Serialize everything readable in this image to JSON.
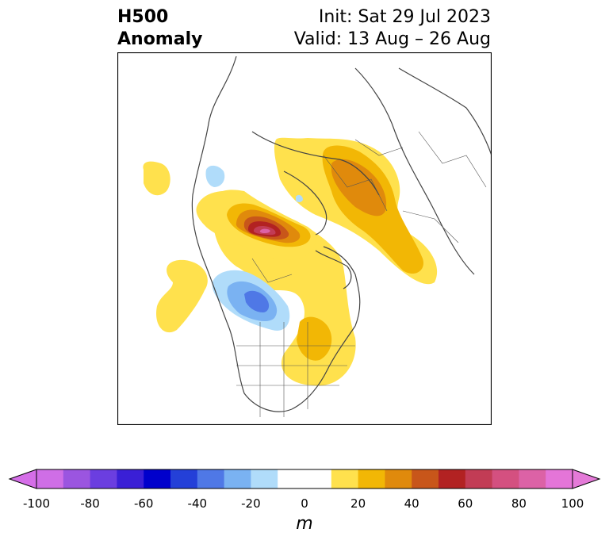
{
  "title": {
    "line1_left": "H500",
    "line2_left": "Anomaly",
    "line1_right": "Init: Sat 29 Jul 2023",
    "line2_right": "Valid: 13 Aug – 26 Aug"
  },
  "colorbar": {
    "unit": "m",
    "tick_labels": [
      "-100",
      "-80",
      "-60",
      "-40",
      "-20",
      "0",
      "20",
      "40",
      "60",
      "80",
      "100"
    ],
    "colors": [
      "#cf6ee6",
      "#9b55e0",
      "#6b3ee0",
      "#3a1fd6",
      "#0000cc",
      "#2440d8",
      "#4f78e6",
      "#7ab2f2",
      "#b0dcfa",
      "#ffffff",
      "#ffffff",
      "#ffe14d",
      "#f2b705",
      "#e08a0c",
      "#c8561a",
      "#b22222",
      "#c23c55",
      "#d45080",
      "#dc62a6",
      "#e475d8"
    ],
    "extend_min_color": "#d56ee8",
    "extend_max_color": "#e47ad8"
  }
}
